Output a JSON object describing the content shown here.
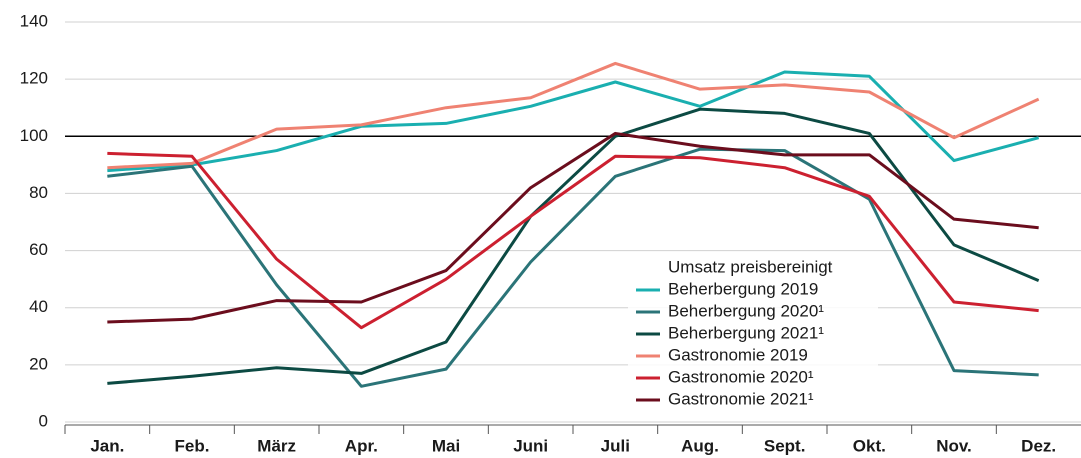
{
  "chart_data": {
    "type": "line",
    "categories": [
      "Jan.",
      "Feb.",
      "März",
      "Apr.",
      "Mai",
      "Juni",
      "Juli",
      "Aug.",
      "Sept.",
      "Okt.",
      "Nov.",
      "Dez."
    ],
    "legend_title": "Umsatz preisbereinigt",
    "series": [
      {
        "name": "Beherbergung 2019",
        "color": "#1aafb0",
        "values": [
          88,
          90,
          95,
          103.5,
          104.5,
          110.5,
          119,
          110.5,
          122.5,
          121,
          91.5,
          99.5
        ]
      },
      {
        "name": "Beherbergung 2020¹",
        "color": "#2b7478",
        "values": [
          86,
          89.5,
          48,
          12.5,
          18.5,
          56,
          86,
          95.5,
          95,
          78,
          18,
          16.5
        ]
      },
      {
        "name": "Beherbergung 2021¹",
        "color": "#0c4a43",
        "values": [
          13.5,
          16,
          19,
          17,
          28,
          72,
          100,
          109.5,
          108,
          101,
          62,
          49.5
        ]
      },
      {
        "name": "Gastronomie 2019",
        "color": "#ef8272",
        "values": [
          89,
          90.5,
          102.5,
          104,
          110,
          113.5,
          125.5,
          116.5,
          118,
          115.5,
          99.5,
          113
        ]
      },
      {
        "name": "Gastronomie 2020¹",
        "color": "#cc2030",
        "values": [
          94,
          93,
          57,
          33,
          50,
          72,
          93,
          92.5,
          89,
          79,
          42,
          39
        ]
      },
      {
        "name": "Gastronomie 2021¹",
        "color": "#6b0d1d",
        "values": [
          35,
          36,
          42.5,
          42,
          53,
          82,
          101,
          96.5,
          93.5,
          93.5,
          71,
          68
        ]
      }
    ],
    "ylim": [
      0,
      140
    ],
    "yticks": [
      0,
      20,
      40,
      60,
      80,
      100,
      120,
      140
    ],
    "reference_line": 100,
    "grid": true
  }
}
